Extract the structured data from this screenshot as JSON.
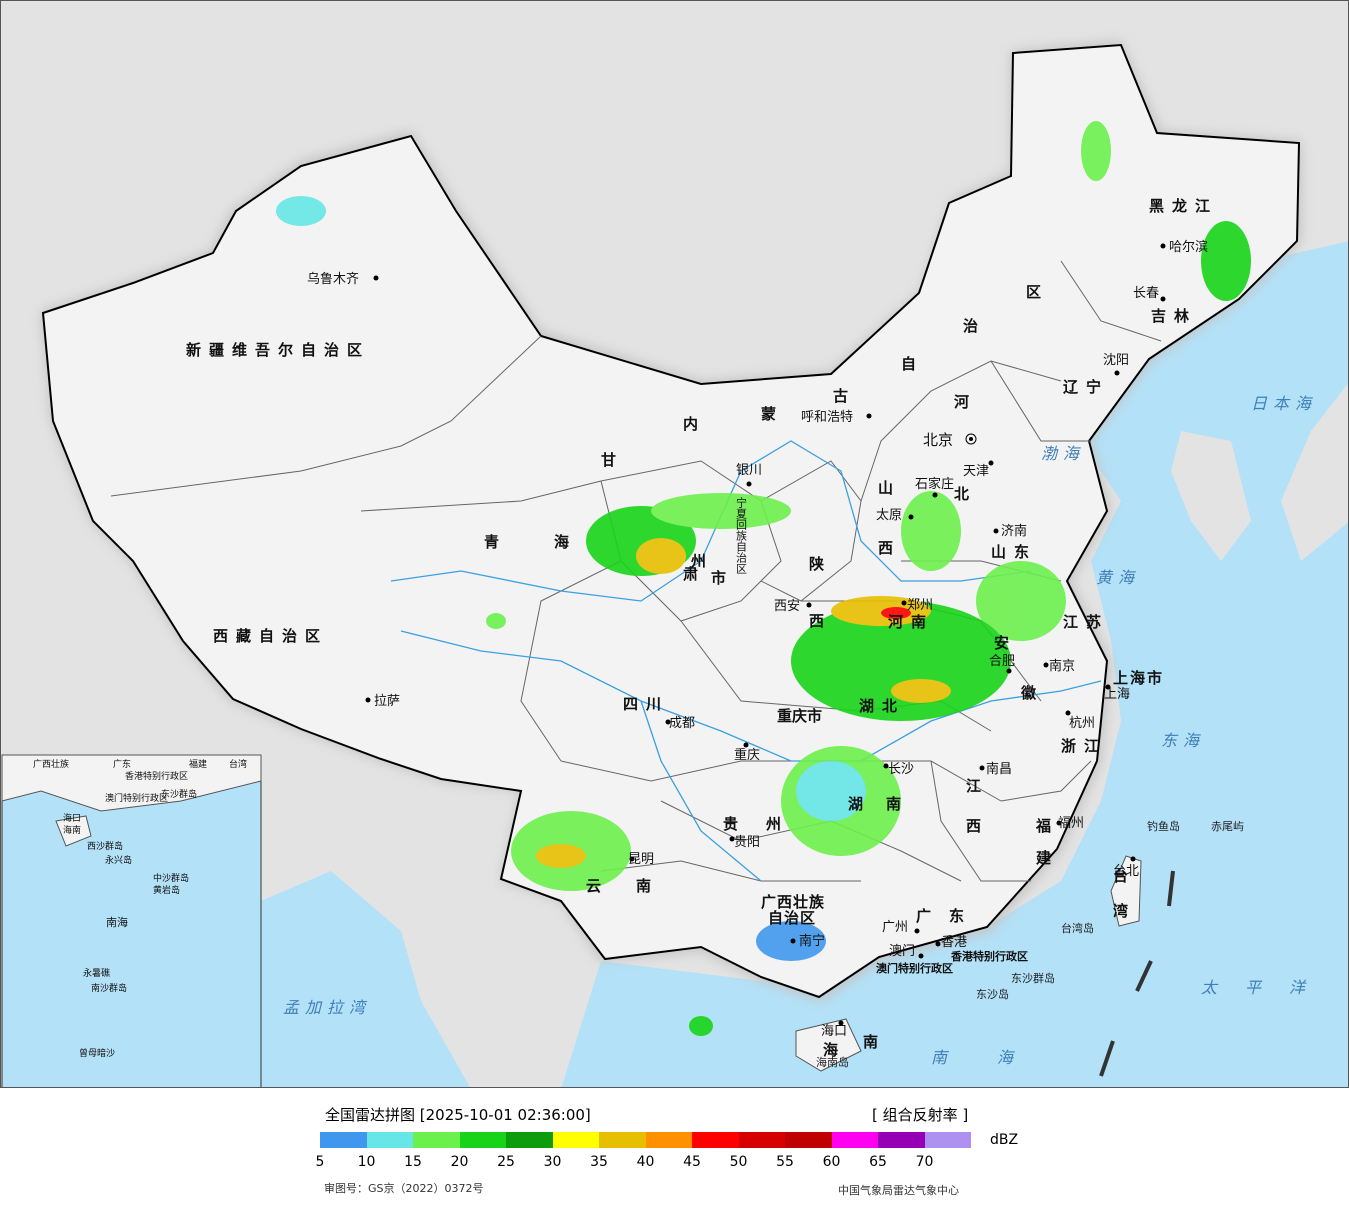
{
  "map": {
    "provinces": [
      {
        "id": "xinjiang",
        "label": "新疆维吾尔自治区"
      },
      {
        "id": "xizang",
        "label": "西藏自治区"
      },
      {
        "id": "qinghai-1",
        "label": "青"
      },
      {
        "id": "qinghai-2",
        "label": "海"
      },
      {
        "id": "gansu-1",
        "label": "甘"
      },
      {
        "id": "gansu-2",
        "label": "肃"
      },
      {
        "id": "neimenggu-1",
        "label": "内"
      },
      {
        "id": "neimenggu-2",
        "label": "蒙"
      },
      {
        "id": "neimenggu-3",
        "label": "古"
      },
      {
        "id": "neimenggu-4",
        "label": "自"
      },
      {
        "id": "neimenggu-5",
        "label": "治"
      },
      {
        "id": "neimenggu-6",
        "label": "区"
      },
      {
        "id": "heilongjiang",
        "label": "黑龙江"
      },
      {
        "id": "jilin",
        "label": "吉林"
      },
      {
        "id": "liaoning",
        "label": "辽宁"
      },
      {
        "id": "hebei-1",
        "label": "河"
      },
      {
        "id": "hebei-2",
        "label": "北"
      },
      {
        "id": "shanxi-1",
        "label": "山"
      },
      {
        "id": "shanxi-2",
        "label": "西"
      },
      {
        "id": "shandong",
        "label": "山东"
      },
      {
        "id": "shaanxi-1",
        "label": "陕"
      },
      {
        "id": "shaanxi-2",
        "label": "西"
      },
      {
        "id": "henan",
        "label": "河南"
      },
      {
        "id": "jiangsu",
        "label": "江苏"
      },
      {
        "id": "anhui-1",
        "label": "安"
      },
      {
        "id": "anhui-2",
        "label": "徽"
      },
      {
        "id": "shanghai",
        "label": "上海市"
      },
      {
        "id": "zhejiang",
        "label": "浙江"
      },
      {
        "id": "hubei",
        "label": "湖北"
      },
      {
        "id": "sichuan",
        "label": "四川"
      },
      {
        "id": "chongqing",
        "label": "重庆市"
      },
      {
        "id": "ningxia",
        "label": "宁夏回族自治区"
      },
      {
        "id": "hunan-1",
        "label": "湖"
      },
      {
        "id": "hunan-2",
        "label": "南"
      },
      {
        "id": "jiangxi-1",
        "label": "江"
      },
      {
        "id": "jiangxi-2",
        "label": "西"
      },
      {
        "id": "fujian-1",
        "label": "福"
      },
      {
        "id": "fujian-2",
        "label": "建"
      },
      {
        "id": "guizhou-1",
        "label": "贵"
      },
      {
        "id": "guizhou-2",
        "label": "州"
      },
      {
        "id": "yunnan-1",
        "label": "云"
      },
      {
        "id": "yunnan-2",
        "label": "南"
      },
      {
        "id": "guangxi-1",
        "label": "广西壮族"
      },
      {
        "id": "guangxi-2",
        "label": "自治区"
      },
      {
        "id": "guangdong",
        "label": "广东"
      },
      {
        "id": "hainan-1",
        "label": "海"
      },
      {
        "id": "hainan-2",
        "label": "南"
      },
      {
        "id": "taiwan-1",
        "label": "台"
      },
      {
        "id": "taiwan-2",
        "label": "湾"
      },
      {
        "id": "hongkong",
        "label": "香港特别行政区"
      },
      {
        "id": "macau",
        "label": "澳门特别行政区"
      },
      {
        "id": "gansu-3",
        "label": "州"
      },
      {
        "id": "gansu-4",
        "label": "市"
      }
    ],
    "cities": [
      {
        "id": "urumqi",
        "label": "乌鲁木齐"
      },
      {
        "id": "lhasa",
        "label": "拉萨"
      },
      {
        "id": "hohhot",
        "label": "呼和浩特"
      },
      {
        "id": "harbin",
        "label": "哈尔滨"
      },
      {
        "id": "changchun",
        "label": "长春"
      },
      {
        "id": "shenyang",
        "label": "沈阳"
      },
      {
        "id": "beijing",
        "label": "北京"
      },
      {
        "id": "tianjin",
        "label": "天津"
      },
      {
        "id": "shijiazhuang",
        "label": "石家庄"
      },
      {
        "id": "taiyuan",
        "label": "太原"
      },
      {
        "id": "jinan",
        "label": "济南"
      },
      {
        "id": "yinchuan",
        "label": "银川"
      },
      {
        "id": "xian",
        "label": "西安"
      },
      {
        "id": "zhengzhou",
        "label": "郑州"
      },
      {
        "id": "hefei",
        "label": "合肥"
      },
      {
        "id": "nanjing",
        "label": "南京"
      },
      {
        "id": "shanghai-city",
        "label": "上海"
      },
      {
        "id": "hangzhou",
        "label": "杭州"
      },
      {
        "id": "chengdu",
        "label": "成都"
      },
      {
        "id": "chongqing-city",
        "label": "重庆"
      },
      {
        "id": "changsha",
        "label": "长沙"
      },
      {
        "id": "nanchang",
        "label": "南昌"
      },
      {
        "id": "fuzhou",
        "label": "福州"
      },
      {
        "id": "guiyang",
        "label": "贵阳"
      },
      {
        "id": "kunming",
        "label": "昆明"
      },
      {
        "id": "nanning",
        "label": "南宁"
      },
      {
        "id": "guangzhou",
        "label": "广州"
      },
      {
        "id": "hongkong-city",
        "label": "香港"
      },
      {
        "id": "macau-city",
        "label": "澳门"
      },
      {
        "id": "haikou",
        "label": "海口"
      },
      {
        "id": "taibei",
        "label": "台北"
      }
    ],
    "seas": [
      {
        "id": "bohai",
        "label": "渤海"
      },
      {
        "id": "huanghai",
        "label": "黄海"
      },
      {
        "id": "donghai",
        "label": "东海"
      },
      {
        "id": "nanhai",
        "label": "南海"
      },
      {
        "id": "riben",
        "label": "日本海"
      },
      {
        "id": "taipingyang",
        "label": "太平洋"
      },
      {
        "id": "mengjiala",
        "label": "孟加拉湾"
      }
    ],
    "islands": [
      {
        "id": "diaoyu",
        "label": "钓鱼岛"
      },
      {
        "id": "chiwei",
        "label": "赤尾屿"
      },
      {
        "id": "dongsha-qundao",
        "label": "东沙群岛"
      },
      {
        "id": "dongsha-dao",
        "label": "东沙岛"
      },
      {
        "id": "hainan-dao",
        "label": "海南岛"
      },
      {
        "id": "taiwan-dao",
        "label": "台湾岛"
      }
    ],
    "inset": {
      "labels": [
        "广西壮族",
        "广东",
        "福建",
        "台湾",
        "香港特别行政区",
        "澳门特别行政区",
        "东沙群岛",
        "海口",
        "海南",
        "西沙群岛",
        "永兴岛",
        "中沙群岛",
        "黄岩岛",
        "南海",
        "永暑礁",
        "南沙群岛",
        "曾母暗沙"
      ]
    }
  },
  "legend": {
    "title": "全国雷达拼图 [2025-10-01 02:36:00]",
    "product": "[ 组合反射率 ]",
    "unit": "dBZ",
    "colors": [
      "#3f98ee",
      "#66e6e6",
      "#6cf04c",
      "#18d418",
      "#0c9c0c",
      "#ffff00",
      "#e6c000",
      "#ff9000",
      "#ff0000",
      "#d60000",
      "#c00000",
      "#ff00f0",
      "#9600b4",
      "#ad90f0"
    ],
    "ticks": [
      "5",
      "10",
      "15",
      "20",
      "25",
      "30",
      "35",
      "40",
      "45",
      "50",
      "55",
      "60",
      "65",
      "70"
    ],
    "review_no": "审图号：GS京（2022）0372号",
    "credit": "中国气象局雷达气象中心"
  }
}
